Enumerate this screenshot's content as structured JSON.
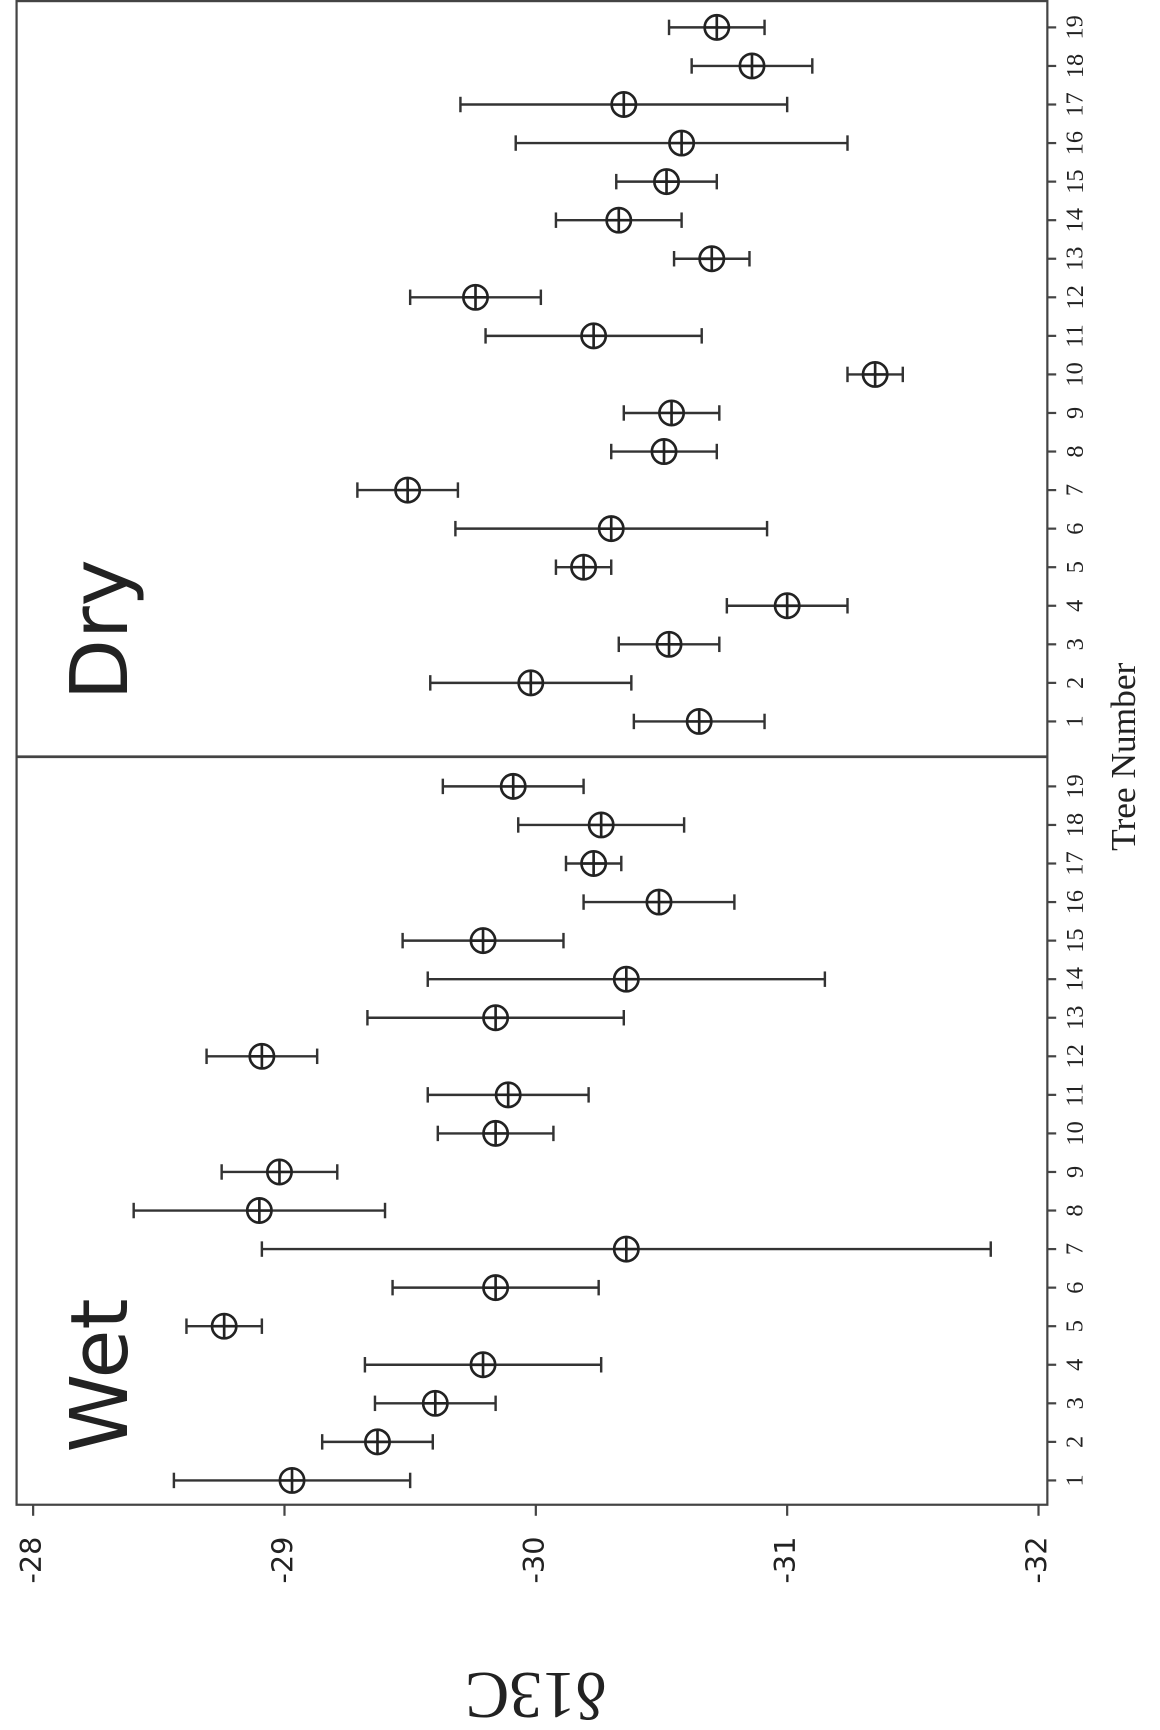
{
  "chart_data": {
    "type": "errorbar",
    "x_label": "Tree Number",
    "y_label": "δ13C",
    "ylim": [
      -32,
      -28
    ],
    "yticks": [
      -28,
      -29,
      -30,
      -31,
      -32
    ],
    "color": "#333333",
    "panels": [
      {
        "title": "Wet",
        "categories": [
          "1",
          "2",
          "3",
          "4",
          "5",
          "6",
          "7",
          "8",
          "9",
          "10",
          "11",
          "12",
          "13",
          "14",
          "15",
          "16",
          "17",
          "18",
          "19"
        ],
        "values": [
          -29.03,
          -29.37,
          -29.6,
          -29.79,
          -28.76,
          -29.84,
          -30.36,
          -28.9,
          -28.98,
          -29.84,
          -29.89,
          -28.91,
          -29.84,
          -30.36,
          -29.79,
          -30.49,
          -30.23,
          -30.26,
          -29.91
        ],
        "errors": [
          0.47,
          0.22,
          0.24,
          0.47,
          0.15,
          0.41,
          1.45,
          0.5,
          0.23,
          0.23,
          0.32,
          0.22,
          0.51,
          0.79,
          0.32,
          0.3,
          0.11,
          0.33,
          0.28
        ]
      },
      {
        "title": "Dry",
        "categories": [
          "1",
          "2",
          "3",
          "4",
          "5",
          "6",
          "7",
          "8",
          "9",
          "10",
          "11",
          "12",
          "13",
          "14",
          "15",
          "16",
          "17",
          "18",
          "19"
        ],
        "values": [
          -30.65,
          -29.98,
          -30.53,
          -31.0,
          -30.19,
          -30.3,
          -29.49,
          -30.51,
          -30.54,
          -31.35,
          -30.23,
          -29.76,
          -30.7,
          -30.33,
          -30.52,
          -30.58,
          -30.35,
          -30.86,
          -30.72
        ],
        "errors": [
          0.26,
          0.4,
          0.2,
          0.24,
          0.11,
          0.62,
          0.2,
          0.21,
          0.19,
          0.11,
          0.43,
          0.26,
          0.15,
          0.25,
          0.2,
          0.66,
          0.65,
          0.24,
          0.19
        ]
      }
    ]
  }
}
